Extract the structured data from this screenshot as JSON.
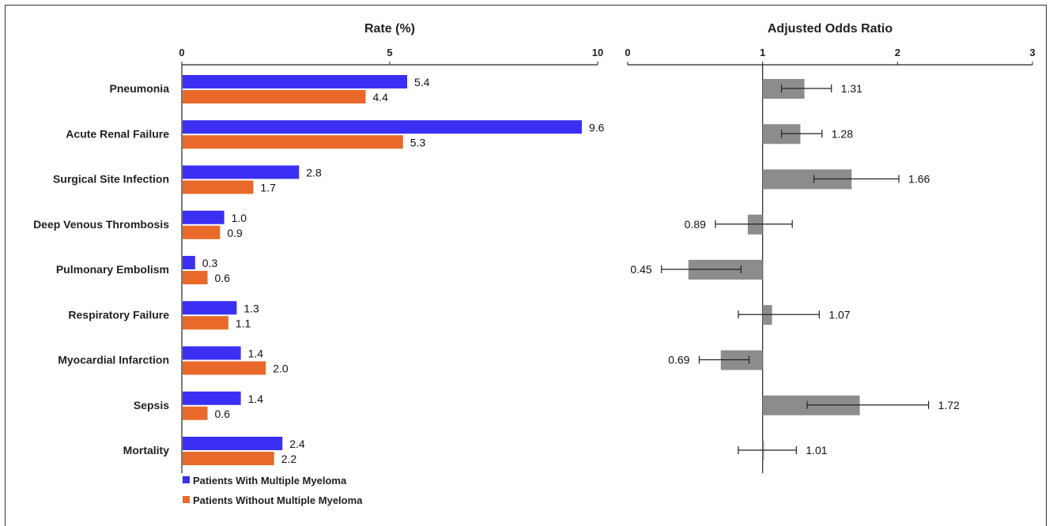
{
  "chart_data": [
    {
      "type": "bar",
      "orientation": "horizontal",
      "title": "Rate (%)",
      "xlim": [
        0,
        10
      ],
      "ticks": [
        "0",
        "5",
        "10"
      ],
      "categories": [
        "Pneumonia",
        "Acute Renal Failure",
        "Surgical Site Infection",
        "Deep Venous Thrombosis",
        "Pulmonary Embolism",
        "Respiratory Failure",
        "Myocardial Infarction",
        "Sepsis",
        "Mortality"
      ],
      "series": [
        {
          "name": "Patients With Multiple Myeloma",
          "color": "#3a2ff2",
          "values": [
            5.4,
            9.6,
            2.8,
            1.0,
            0.3,
            1.3,
            1.4,
            1.4,
            2.4
          ],
          "labels": [
            "5.4",
            "9.6",
            "2.8",
            "1.0",
            "0.3",
            "1.3",
            "1.4",
            "1.4",
            "2.4"
          ]
        },
        {
          "name": "Patients Without Multiple Myeloma",
          "color": "#e8692a",
          "values": [
            4.4,
            5.3,
            1.7,
            0.9,
            0.6,
            1.1,
            2.0,
            0.6,
            2.2
          ],
          "labels": [
            "4.4",
            "5.3",
            "1.7",
            "0.9",
            "0.6",
            "1.1",
            "2.0",
            "0.6",
            "2.2"
          ]
        }
      ],
      "legend": "bottom-left",
      "grid": false
    },
    {
      "type": "bar",
      "orientation": "horizontal",
      "title": "Adjusted Odds Ratio",
      "xlim": [
        0,
        3
      ],
      "reference": 1,
      "ticks": [
        "0",
        "1",
        "2",
        "3"
      ],
      "bar_color": "#8c8c8c",
      "values": [
        1.31,
        1.28,
        1.66,
        0.89,
        0.45,
        1.07,
        0.69,
        1.72,
        1.01
      ],
      "labels": [
        "1.31",
        "1.28",
        "1.66",
        "0.89",
        "0.45",
        "1.07",
        "0.69",
        "1.72",
        "1.01"
      ],
      "ci_low": [
        1.14,
        1.14,
        1.38,
        0.65,
        0.25,
        0.82,
        0.53,
        1.33,
        0.82
      ],
      "ci_high": [
        1.51,
        1.44,
        2.01,
        1.22,
        0.84,
        1.42,
        0.9,
        2.23,
        1.25
      ],
      "grid": false
    }
  ]
}
